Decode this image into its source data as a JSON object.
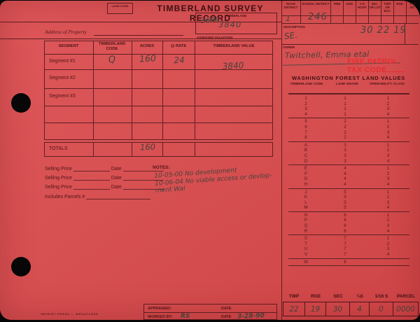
{
  "form": {
    "title": "TIMBERLAND SURVEY RECORD",
    "land_code_label": "LAND CODE",
    "address_label": "Address of Property",
    "footer_imprint": "IMPRINT PRESS — WENATCHEE"
  },
  "assessed_box": {
    "label": "TIMBERLAND",
    "crossed_out_value": "3600",
    "value": "3840",
    "caption": "ASSESSED VALUATION"
  },
  "header_strip": {
    "columns": [
      "ROAD DISTRICT",
      "SCHOOL DISTRICT",
      "FIRE",
      "CEM.",
      "A.P. HOSP.",
      "SEC. OR LOT",
      "TWP. OR BLK.",
      "RGE.",
      "TAX NO."
    ],
    "road_district_value": "1",
    "school_district_value": "246"
  },
  "description": {
    "label": "DESCRIPTION",
    "value": "SE.",
    "section_township_range": "30 22 19"
  },
  "owner": {
    "label": "OWNER",
    "value": "Twitchell, Emma  etal"
  },
  "fire_patrol": {
    "line1": "FIRE PATROL",
    "line2": "TAX CODE"
  },
  "segment_table": {
    "columns": [
      "SEGMENT",
      "TIMBERLAND CODE",
      "ACRES",
      "@ RATE",
      "TIMBERLAND VALUE"
    ],
    "rows": [
      {
        "label": "Segment #1",
        "code": "Q",
        "acres": "160",
        "rate": "24",
        "value": "3840"
      },
      {
        "label": "Segment #2",
        "code": "",
        "acres": "",
        "rate": "",
        "value": ""
      },
      {
        "label": "Segment #3",
        "code": "",
        "acres": "",
        "rate": "",
        "value": ""
      },
      {
        "label": "",
        "code": "",
        "acres": "",
        "rate": "",
        "value": ""
      },
      {
        "label": "",
        "code": "",
        "acres": "",
        "rate": "",
        "value": ""
      },
      {
        "label": "TOTALS",
        "code": "",
        "acres": "160",
        "rate": "",
        "value": ""
      }
    ]
  },
  "selling": {
    "rows": [
      {
        "label": "Selling Price",
        "date_label": "Date"
      },
      {
        "label": "Selling Price",
        "date_label": "Date"
      },
      {
        "label": "Selling Price",
        "date_label": "Date"
      }
    ],
    "includes_label": "Includes Parcels #"
  },
  "notes": {
    "label": "NOTES:",
    "lines": [
      "10-05-00 No development",
      "10-06-04 No viable access or devlop-",
      "ment  Wal"
    ]
  },
  "forest_values": {
    "title": "WASHINGTON FOREST LAND VALUES",
    "columns": [
      "TIMBERLAND CODE",
      "LAND GRADE",
      "OPERABILITY CLASS"
    ],
    "groups": [
      [
        [
          "1",
          "1",
          "1"
        ],
        [
          "2",
          "1",
          "2"
        ],
        [
          "3",
          "1",
          "3"
        ],
        [
          "4",
          "1",
          "4"
        ]
      ],
      [
        [
          "5",
          "2",
          "1"
        ],
        [
          "6",
          "2",
          "2"
        ],
        [
          "7",
          "2",
          "3"
        ],
        [
          "8",
          "2",
          "4"
        ]
      ],
      [
        [
          "A",
          "3",
          "1"
        ],
        [
          "B",
          "3",
          "2"
        ],
        [
          "C",
          "3",
          "3"
        ],
        [
          "D",
          "3",
          "4"
        ]
      ],
      [
        [
          "E",
          "4",
          "1"
        ],
        [
          "F",
          "4",
          "2"
        ],
        [
          "G",
          "4",
          "3"
        ],
        [
          "H",
          "4",
          "4"
        ]
      ],
      [
        [
          "J",
          "5",
          "1"
        ],
        [
          "K",
          "5",
          "2"
        ],
        [
          "L",
          "5",
          "3"
        ],
        [
          "M",
          "5",
          "4"
        ]
      ],
      [
        [
          "N",
          "6",
          "1"
        ],
        [
          "P",
          "6",
          "2"
        ],
        [
          "Q",
          "6",
          "3"
        ],
        [
          "R",
          "6",
          "4"
        ]
      ],
      [
        [
          "S",
          "7",
          "1"
        ],
        [
          "T",
          "7",
          "2"
        ],
        [
          "U",
          "7",
          "3"
        ],
        [
          "V",
          "7",
          "4"
        ]
      ],
      [
        [
          "W",
          "8",
          ""
        ]
      ]
    ]
  },
  "trs_table": {
    "columns": [
      "TWP",
      "RGE",
      "SEC",
      "¼S",
      "1/16 S",
      "PARCEL"
    ],
    "values": [
      "22",
      "19",
      "30",
      "4",
      "0",
      "0000"
    ]
  },
  "credits": {
    "appraised_label": "APPRAISED:",
    "date_label": "DATE",
    "worked_label": "WORKED BY:",
    "worked_by": "RS",
    "worked_date": "3-28-90"
  },
  "colors": {
    "card": "#d75052",
    "ink": "#4f1517",
    "rule": "#5f1f22",
    "bright_red": "#ea2a2e",
    "pencil": "#474039"
  }
}
